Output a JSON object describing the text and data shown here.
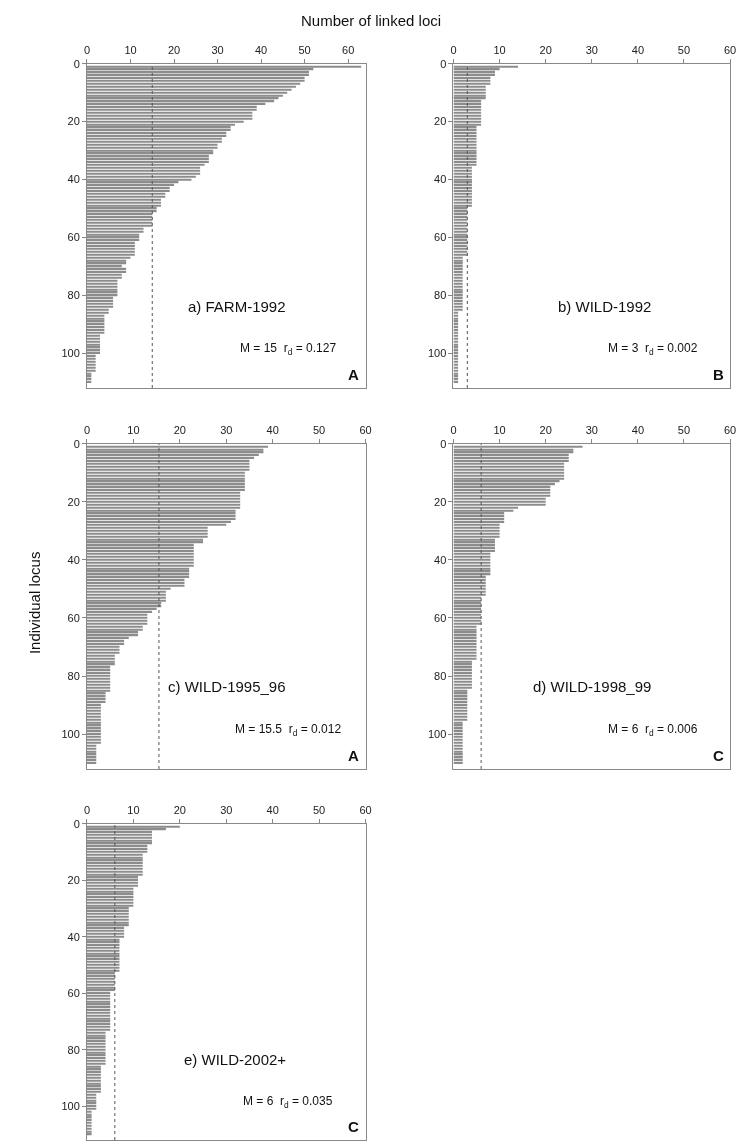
{
  "chart_data": [
    {
      "type": "bar",
      "orientation": "horizontal",
      "title": "a) FARM-1992",
      "xlabel": "Number of linked loci",
      "color": "#8c8c8c",
      "xlim": [
        0,
        64
      ],
      "xticks": [
        0,
        10,
        20,
        30,
        40,
        50,
        60
      ],
      "ylim": [
        112,
        0
      ],
      "yticks": [
        0,
        20,
        40,
        60,
        80,
        100
      ],
      "x": [
        1,
        2,
        3,
        4,
        5,
        6,
        7,
        8,
        9,
        10,
        11,
        12,
        13,
        14,
        15,
        16,
        17,
        18,
        19,
        20,
        21,
        22,
        23,
        24,
        25,
        26,
        27,
        28,
        29,
        30,
        31,
        32,
        33,
        34,
        35,
        36,
        37,
        38,
        39,
        40,
        41,
        42,
        43,
        44,
        45,
        46,
        47,
        48,
        49,
        50,
        51,
        52,
        53,
        54,
        55,
        56,
        57,
        58,
        59,
        60,
        61,
        62,
        63,
        64,
        65,
        66,
        67,
        68,
        69,
        70,
        71,
        72,
        73,
        74,
        75,
        76,
        77,
        78,
        79,
        80,
        81,
        82,
        83,
        84,
        85,
        86,
        87,
        88,
        89,
        90,
        91,
        92,
        93,
        94,
        95,
        96,
        97,
        98,
        99,
        100,
        101,
        102,
        103,
        104,
        105,
        106,
        107,
        108,
        109,
        110
      ],
      "values": [
        63,
        52,
        51,
        51,
        50,
        50,
        49,
        48,
        47,
        46,
        45,
        44,
        43,
        41,
        39,
        39,
        38,
        38,
        38,
        36,
        34,
        33,
        33,
        32,
        32,
        31,
        31,
        30,
        30,
        29,
        29,
        28,
        28,
        28,
        27,
        26,
        26,
        26,
        25,
        24,
        21,
        20,
        19,
        19,
        18,
        18,
        17,
        17,
        17,
        16,
        16,
        15,
        15,
        15,
        15,
        15,
        13,
        13,
        12,
        12,
        12,
        11,
        11,
        11,
        11,
        11,
        10,
        9,
        9,
        8,
        9,
        9,
        8,
        8,
        7,
        7,
        7,
        7,
        7,
        7,
        6,
        6,
        6,
        6,
        5,
        5,
        4,
        4,
        4,
        4,
        4,
        4,
        4,
        3,
        3,
        3,
        3,
        3,
        3,
        3,
        2,
        2,
        2,
        2,
        2,
        2,
        1,
        1,
        1,
        1
      ],
      "ref_lines": [
        {
          "axis": "x",
          "value": 15,
          "color": "#555555",
          "line_style": "dotted"
        }
      ],
      "annotations": [
        "M = 15  r$_{d}$ = 0.127",
        "A"
      ]
    },
    {
      "type": "bar",
      "orientation": "horizontal",
      "title": "b) WILD-1992",
      "color": "#8c8c8c",
      "xlim": [
        0,
        60
      ],
      "xticks": [
        0,
        10,
        20,
        30,
        40,
        50,
        60
      ],
      "ylim": [
        112,
        0
      ],
      "yticks": [
        0,
        20,
        40,
        60,
        80,
        100
      ],
      "x": [
        1,
        2,
        3,
        4,
        5,
        6,
        7,
        8,
        9,
        10,
        11,
        12,
        13,
        14,
        15,
        16,
        17,
        18,
        19,
        20,
        21,
        22,
        23,
        24,
        25,
        26,
        27,
        28,
        29,
        30,
        31,
        32,
        33,
        34,
        35,
        36,
        37,
        38,
        39,
        40,
        41,
        42,
        43,
        44,
        45,
        46,
        47,
        48,
        49,
        50,
        51,
        52,
        53,
        54,
        55,
        56,
        57,
        58,
        59,
        60,
        61,
        62,
        63,
        64,
        65,
        66,
        67,
        68,
        69,
        70,
        71,
        72,
        73,
        74,
        75,
        76,
        77,
        78,
        79,
        80,
        81,
        82,
        83,
        84,
        85,
        86,
        87,
        88,
        89,
        90,
        91,
        92,
        93,
        94,
        95,
        96,
        97,
        98,
        99,
        100,
        101,
        102,
        103,
        104,
        105,
        106,
        107,
        108,
        109,
        110
      ],
      "values": [
        14,
        10,
        9,
        9,
        8,
        8,
        8,
        7,
        7,
        7,
        7,
        7,
        6,
        6,
        6,
        6,
        6,
        6,
        6,
        6,
        6,
        5,
        5,
        5,
        5,
        5,
        5,
        5,
        5,
        5,
        5,
        5,
        5,
        5,
        5,
        4,
        4,
        4,
        4,
        4,
        4,
        4,
        4,
        4,
        4,
        4,
        4,
        4,
        4,
        3,
        3,
        3,
        3,
        3,
        3,
        3,
        3,
        3,
        3,
        3,
        3,
        3,
        3,
        3,
        3,
        3,
        2,
        2,
        2,
        2,
        2,
        2,
        2,
        2,
        2,
        2,
        2,
        2,
        2,
        2,
        2,
        2,
        2,
        2,
        2,
        1,
        1,
        1,
        1,
        1,
        1,
        1,
        1,
        1,
        1,
        1,
        1,
        1,
        1,
        1,
        1,
        1,
        1,
        1,
        1,
        1,
        1,
        1,
        1,
        1
      ],
      "ref_lines": [
        {
          "axis": "x",
          "value": 3,
          "color": "#555555",
          "line_style": "dotted"
        }
      ],
      "annotations": [
        "M = 3  r$_{d}$ = 0.002",
        "B"
      ]
    },
    {
      "type": "bar",
      "orientation": "horizontal",
      "title": "c) WILD-1995_96",
      "ylabel": "Individual locus",
      "color": "#8c8c8c",
      "xlim": [
        0,
        60
      ],
      "xticks": [
        0,
        10,
        20,
        30,
        40,
        50,
        60
      ],
      "ylim": [
        112,
        0
      ],
      "yticks": [
        0,
        20,
        40,
        60,
        80,
        100
      ],
      "x": [
        1,
        2,
        3,
        4,
        5,
        6,
        7,
        8,
        9,
        10,
        11,
        12,
        13,
        14,
        15,
        16,
        17,
        18,
        19,
        20,
        21,
        22,
        23,
        24,
        25,
        26,
        27,
        28,
        29,
        30,
        31,
        32,
        33,
        34,
        35,
        36,
        37,
        38,
        39,
        40,
        41,
        42,
        43,
        44,
        45,
        46,
        47,
        48,
        49,
        50,
        51,
        52,
        53,
        54,
        55,
        56,
        57,
        58,
        59,
        60,
        61,
        62,
        63,
        64,
        65,
        66,
        67,
        68,
        69,
        70,
        71,
        72,
        73,
        74,
        75,
        76,
        77,
        78,
        79,
        80,
        81,
        82,
        83,
        84,
        85,
        86,
        87,
        88,
        89,
        90,
        91,
        92,
        93,
        94,
        95,
        96,
        97,
        98,
        99,
        100,
        101,
        102,
        103,
        104,
        105,
        106,
        107,
        108,
        109,
        110
      ],
      "values": [
        39,
        38,
        38,
        37,
        36,
        35,
        35,
        35,
        35,
        34,
        34,
        34,
        34,
        34,
        34,
        34,
        33,
        33,
        33,
        33,
        33,
        33,
        32,
        32,
        32,
        32,
        31,
        30,
        26,
        26,
        26,
        26,
        25,
        25,
        23,
        23,
        23,
        23,
        23,
        23,
        23,
        23,
        22,
        22,
        22,
        22,
        21,
        21,
        21,
        18,
        17,
        17,
        17,
        17,
        16,
        16,
        15,
        14,
        13,
        13,
        13,
        13,
        12,
        12,
        11,
        11,
        9,
        8,
        8,
        7,
        7,
        7,
        6,
        6,
        6,
        6,
        5,
        5,
        5,
        5,
        5,
        5,
        5,
        5,
        5,
        4,
        4,
        4,
        4,
        3,
        3,
        3,
        3,
        3,
        3,
        3,
        3,
        3,
        3,
        3,
        3,
        3,
        3,
        2,
        2,
        2,
        2,
        2,
        2,
        2
      ],
      "ref_lines": [
        {
          "axis": "x",
          "value": 15.5,
          "color": "#555555",
          "line_style": "dotted"
        }
      ],
      "annotations": [
        "M = 15.5  r$_{d}$ = 0.012",
        "A"
      ]
    },
    {
      "type": "bar",
      "orientation": "horizontal",
      "title": "d) WILD-1998_99",
      "color": "#8c8c8c",
      "xlim": [
        0,
        60
      ],
      "xticks": [
        0,
        10,
        20,
        30,
        40,
        50,
        60
      ],
      "ylim": [
        112,
        0
      ],
      "yticks": [
        0,
        20,
        40,
        60,
        80,
        100
      ],
      "x": [
        1,
        2,
        3,
        4,
        5,
        6,
        7,
        8,
        9,
        10,
        11,
        12,
        13,
        14,
        15,
        16,
        17,
        18,
        19,
        20,
        21,
        22,
        23,
        24,
        25,
        26,
        27,
        28,
        29,
        30,
        31,
        32,
        33,
        34,
        35,
        36,
        37,
        38,
        39,
        40,
        41,
        42,
        43,
        44,
        45,
        46,
        47,
        48,
        49,
        50,
        51,
        52,
        53,
        54,
        55,
        56,
        57,
        58,
        59,
        60,
        61,
        62,
        63,
        64,
        65,
        66,
        67,
        68,
        69,
        70,
        71,
        72,
        73,
        74,
        75,
        76,
        77,
        78,
        79,
        80,
        81,
        82,
        83,
        84,
        85,
        86,
        87,
        88,
        89,
        90,
        91,
        92,
        93,
        94,
        95,
        96,
        97,
        98,
        99,
        100,
        101,
        102,
        103,
        104,
        105,
        106,
        107,
        108,
        109,
        110
      ],
      "values": [
        28,
        26,
        26,
        25,
        25,
        25,
        24,
        24,
        24,
        24,
        24,
        24,
        23,
        22,
        21,
        21,
        21,
        21,
        20,
        20,
        20,
        14,
        13,
        11,
        11,
        11,
        11,
        10,
        10,
        10,
        10,
        10,
        9,
        9,
        9,
        9,
        9,
        8,
        8,
        8,
        8,
        8,
        8,
        8,
        8,
        7,
        7,
        7,
        7,
        7,
        7,
        7,
        6,
        6,
        6,
        6,
        6,
        6,
        6,
        6,
        6,
        6,
        5,
        5,
        5,
        5,
        5,
        5,
        5,
        5,
        5,
        5,
        5,
        5,
        4,
        4,
        4,
        4,
        4,
        4,
        4,
        4,
        4,
        4,
        3,
        3,
        3,
        3,
        3,
        3,
        3,
        3,
        3,
        3,
        3,
        2,
        2,
        2,
        2,
        2,
        2,
        2,
        2,
        2,
        2,
        2,
        2,
        2,
        2,
        2
      ],
      "ref_lines": [
        {
          "axis": "x",
          "value": 6,
          "color": "#555555",
          "line_style": "dotted"
        }
      ],
      "annotations": [
        "M = 6  r$_{d}$ = 0.006",
        "C"
      ]
    },
    {
      "type": "bar",
      "orientation": "horizontal",
      "title": "e) WILD-2002+",
      "color": "#8c8c8c",
      "xlim": [
        0,
        60
      ],
      "xticks": [
        0,
        10,
        20,
        30,
        40,
        50,
        60
      ],
      "ylim": [
        112,
        0
      ],
      "yticks": [
        0,
        20,
        40,
        60,
        80,
        100
      ],
      "x": [
        1,
        2,
        3,
        4,
        5,
        6,
        7,
        8,
        9,
        10,
        11,
        12,
        13,
        14,
        15,
        16,
        17,
        18,
        19,
        20,
        21,
        22,
        23,
        24,
        25,
        26,
        27,
        28,
        29,
        30,
        31,
        32,
        33,
        34,
        35,
        36,
        37,
        38,
        39,
        40,
        41,
        42,
        43,
        44,
        45,
        46,
        47,
        48,
        49,
        50,
        51,
        52,
        53,
        54,
        55,
        56,
        57,
        58,
        59,
        60,
        61,
        62,
        63,
        64,
        65,
        66,
        67,
        68,
        69,
        70,
        71,
        72,
        73,
        74,
        75,
        76,
        77,
        78,
        79,
        80,
        81,
        82,
        83,
        84,
        85,
        86,
        87,
        88,
        89,
        90,
        91,
        92,
        93,
        94,
        95,
        96,
        97,
        98,
        99,
        100,
        101,
        102,
        103,
        104,
        105,
        106,
        107,
        108,
        109,
        110
      ],
      "values": [
        20,
        17,
        14,
        14,
        14,
        14,
        14,
        13,
        13,
        13,
        12,
        12,
        12,
        12,
        12,
        12,
        12,
        12,
        11,
        11,
        11,
        11,
        10,
        10,
        10,
        10,
        10,
        10,
        10,
        9,
        9,
        9,
        9,
        9,
        9,
        9,
        8,
        8,
        8,
        8,
        7,
        7,
        7,
        7,
        7,
        7,
        7,
        7,
        7,
        7,
        7,
        7,
        6,
        6,
        6,
        6,
        6,
        6,
        6,
        5,
        5,
        5,
        5,
        5,
        5,
        5,
        5,
        5,
        5,
        5,
        5,
        5,
        5,
        4,
        4,
        4,
        4,
        4,
        4,
        4,
        4,
        4,
        4,
        4,
        4,
        3,
        3,
        3,
        3,
        3,
        3,
        3,
        3,
        3,
        3,
        2,
        2,
        2,
        2,
        2,
        2,
        1,
        1,
        1,
        1,
        1,
        1,
        1,
        1,
        1
      ],
      "ref_lines": [
        {
          "axis": "x",
          "value": 6,
          "color": "#555555",
          "line_style": "dotted"
        }
      ],
      "annotations": [
        "M = 6  r$_{d}$ = 0.035",
        "C"
      ]
    }
  ]
}
